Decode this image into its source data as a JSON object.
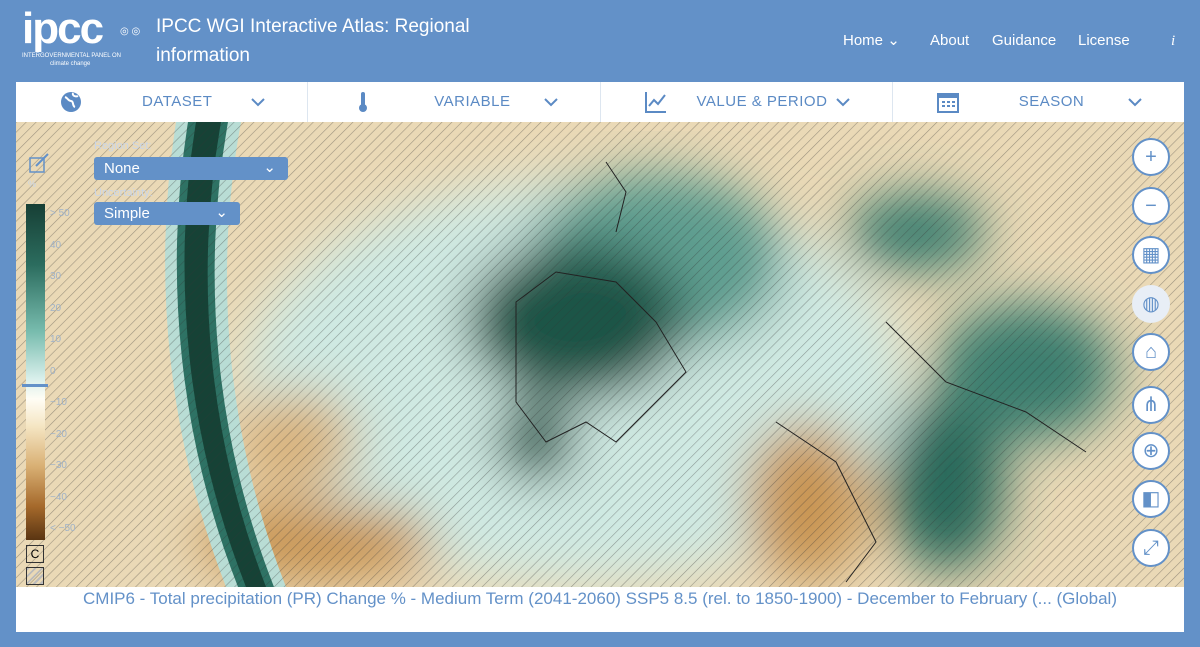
{
  "header": {
    "logo_text": "ipcc",
    "logo_subtitle_1": "INTERGOVERNMENTAL PANEL ON",
    "logo_subtitle_2": "climate change",
    "title": "IPCC WGI Interactive Atlas: Regional information",
    "nav": [
      {
        "label": "Home"
      },
      {
        "label": "About"
      },
      {
        "label": "Guidance"
      },
      {
        "label": "License"
      },
      {
        "label": "i"
      }
    ]
  },
  "toolbar": [
    {
      "label": "DATASET",
      "icon": "globe-icon"
    },
    {
      "label": "VARIABLE",
      "icon": "thermometer-icon"
    },
    {
      "label": "VALUE & PERIOD",
      "icon": "line-chart-icon"
    },
    {
      "label": "SEASON",
      "icon": "calendar-icon"
    }
  ],
  "map": {
    "region_set_label": "Region Set:",
    "region_set_value": "None",
    "uncertainty_label": "Uncertainty:",
    "uncertainty_value": "Simple",
    "unit": "%",
    "legend_ticks": [
      "> 50",
      "40",
      "30",
      "20",
      "10",
      "0",
      "−10",
      "−20",
      "−30",
      "−40",
      "< −50"
    ],
    "legend_marker_value": -4,
    "c_button": "C",
    "colors": {
      "wet": "#173f35",
      "dry": "#5a3512",
      "accent": "#6391c8"
    },
    "tools": [
      "zoom-in-icon",
      "zoom-out-icon",
      "map-layers-icon",
      "globe-projection-icon",
      "tag-icon",
      "share-icon",
      "crosshair-icon",
      "compare-icon",
      "fullscreen-icon"
    ]
  },
  "caption": "CMIP6 - Total precipitation (PR) Change % - Medium Term (2041-2060) SSP5 8.5 (rel. to 1850-1900) - December to February (... (Global)"
}
